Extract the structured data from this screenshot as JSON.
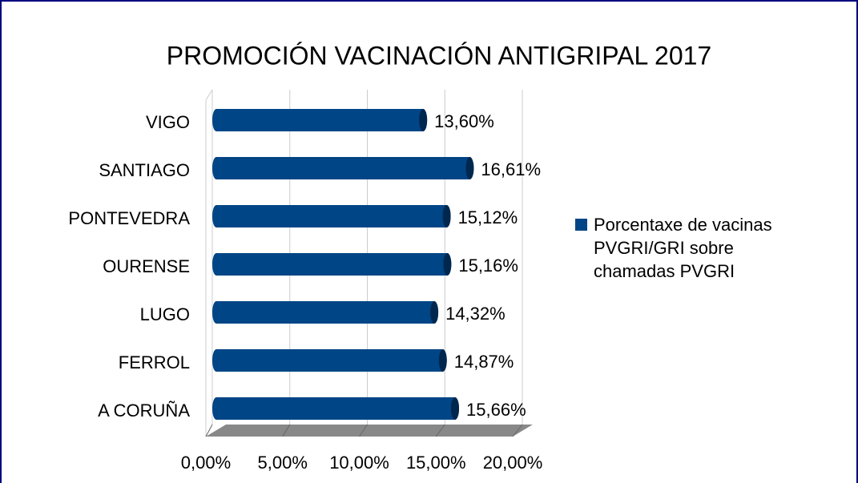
{
  "chart_data": {
    "type": "hbar",
    "title": "PROMOCIÓN VACINACIÓN ANTIGRIPAL 2017",
    "categories": [
      "VIGO",
      "SANTIAGO",
      "PONTEVEDRA",
      "OURENSE",
      "LUGO",
      "FERROL",
      "A CORUÑA"
    ],
    "series": [
      {
        "name": "Porcentaxe de vacinas PVGRI/GRI sobre chamadas PVGRI",
        "color": "#004586",
        "values": [
          13.6,
          16.61,
          15.12,
          15.16,
          14.32,
          14.87,
          15.66
        ],
        "value_labels": [
          "13,60%",
          "16,61%",
          "15,12%",
          "15,16%",
          "14,32%",
          "14,87%",
          "15,66%"
        ]
      }
    ],
    "xlim": [
      0,
      20
    ],
    "xticks": [
      {
        "value": 0,
        "label": "0,00%"
      },
      {
        "value": 5,
        "label": "5,00%"
      },
      {
        "value": 10,
        "label": "10,00%"
      },
      {
        "value": 15,
        "label": "15,00%"
      },
      {
        "value": 20,
        "label": "20,00%"
      }
    ],
    "grid": true,
    "legend": "right"
  }
}
